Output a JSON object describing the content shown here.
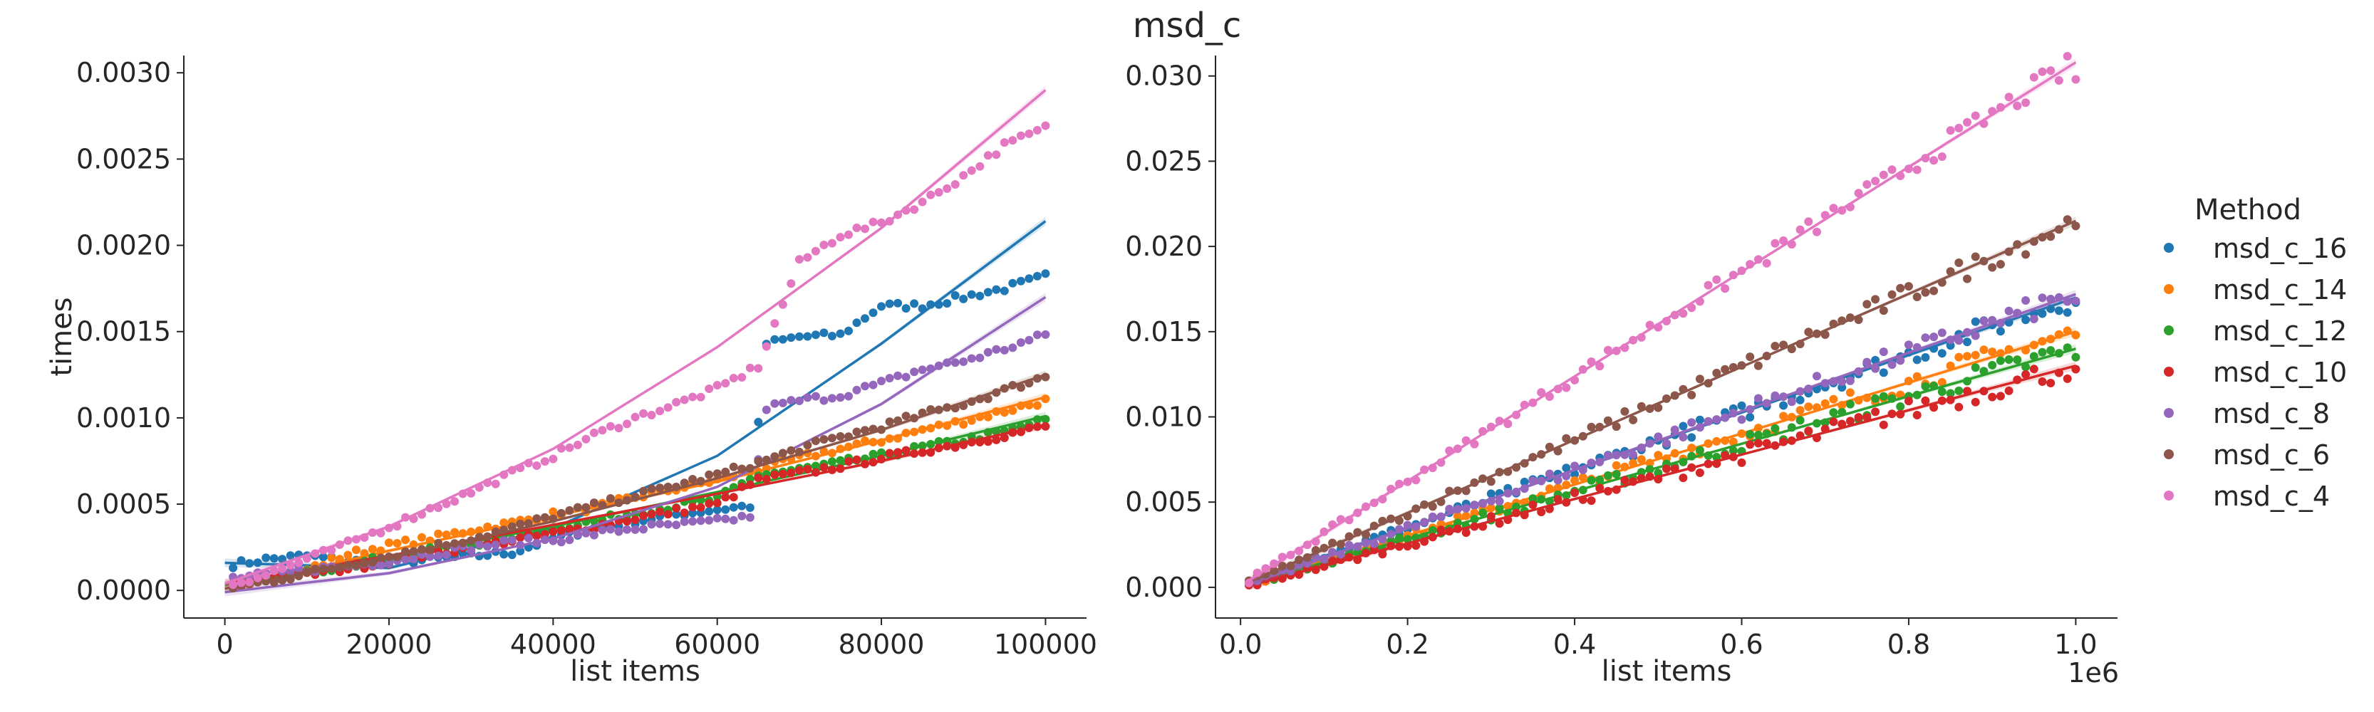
{
  "figure_title": "msd_c",
  "legend": {
    "title": "Method",
    "placement": "right"
  },
  "chart_data": [
    {
      "type": "scatter",
      "panel": "left",
      "xlabel": "list items",
      "ylabel": "times",
      "xlim": [
        -5000,
        105000
      ],
      "ylim": [
        -0.00016,
        0.0031
      ],
      "xticks": [
        0,
        20000,
        40000,
        60000,
        80000,
        100000
      ],
      "xtick_labels": [
        "0",
        "20000",
        "40000",
        "60000",
        "80000",
        "100000"
      ],
      "yticks": [
        0,
        0.0005,
        0.001,
        0.0015,
        0.002,
        0.0025,
        0.003
      ],
      "ytick_labels": [
        "0.0000",
        "0.0005",
        "0.0010",
        "0.0015",
        "0.0020",
        "0.0025",
        "0.0030"
      ],
      "x_offset_label": "",
      "grid": false,
      "trend_lines": "quadratic fit with confidence band",
      "x_samples": {
        "start": 1000,
        "stop": 100000,
        "count": 100
      },
      "series": [
        {
          "name": "msd_c_16",
          "color": "#1f77b4",
          "points": [
            [
              1000,
              0.00015
            ],
            [
              5000,
              0.00018
            ],
            [
              10000,
              0.0002
            ],
            [
              15000,
              0.00017
            ],
            [
              20000,
              0.00016
            ],
            [
              25000,
              0.00018
            ],
            [
              30000,
              0.0002
            ],
            [
              35000,
              0.00022
            ],
            [
              40000,
              0.0003
            ],
            [
              45000,
              0.00036
            ],
            [
              50000,
              0.0004
            ],
            [
              55000,
              0.00044
            ],
            [
              60000,
              0.00047
            ],
            [
              64000,
              0.00049
            ],
            [
              66000,
              0.00143
            ],
            [
              70000,
              0.00147
            ],
            [
              75000,
              0.00148
            ],
            [
              80000,
              0.00165
            ],
            [
              85000,
              0.00165
            ],
            [
              90000,
              0.0017
            ],
            [
              95000,
              0.00175
            ],
            [
              100000,
              0.00182
            ]
          ],
          "fit": [
            [
              0,
              0.00016
            ],
            [
              20000,
              0.00013
            ],
            [
              40000,
              0.00036
            ],
            [
              60000,
              0.00078
            ],
            [
              80000,
              0.00143
            ],
            [
              100000,
              0.00214
            ]
          ]
        },
        {
          "name": "msd_c_14",
          "color": "#ff7f0e",
          "points": [
            [
              1000,
              2e-05
            ],
            [
              5000,
              8e-05
            ],
            [
              10000,
              0.00012
            ],
            [
              15000,
              0.00021
            ],
            [
              20000,
              0.00026
            ],
            [
              25000,
              0.0003
            ],
            [
              30000,
              0.00035
            ],
            [
              35000,
              0.00039
            ],
            [
              40000,
              0.00044
            ],
            [
              45000,
              0.00048
            ],
            [
              50000,
              0.00054
            ],
            [
              55000,
              0.00059
            ],
            [
              60000,
              0.00064
            ],
            [
              65000,
              0.0007
            ],
            [
              70000,
              0.00077
            ],
            [
              75000,
              0.00082
            ],
            [
              80000,
              0.00087
            ],
            [
              85000,
              0.00093
            ],
            [
              90000,
              0.00098
            ],
            [
              95000,
              0.00104
            ],
            [
              100000,
              0.0011
            ]
          ],
          "fit": [
            [
              0,
              1e-05
            ],
            [
              20000,
              0.00023
            ],
            [
              40000,
              0.00043
            ],
            [
              60000,
              0.00063
            ],
            [
              80000,
              0.00087
            ],
            [
              100000,
              0.00112
            ]
          ]
        },
        {
          "name": "msd_c_12",
          "color": "#2ca02c",
          "points": [
            [
              1000,
              3e-05
            ],
            [
              5000,
              6e-05
            ],
            [
              10000,
              0.0001
            ],
            [
              15000,
              0.00015
            ],
            [
              20000,
              0.00019
            ],
            [
              25000,
              0.00023
            ],
            [
              30000,
              0.00027
            ],
            [
              35000,
              0.00031
            ],
            [
              40000,
              0.00036
            ],
            [
              45000,
              0.0004
            ],
            [
              50000,
              0.00045
            ],
            [
              55000,
              0.00049
            ],
            [
              60000,
              0.00053
            ],
            [
              65000,
              0.00067
            ],
            [
              70000,
              0.0007
            ],
            [
              75000,
              0.00074
            ],
            [
              80000,
              0.00078
            ],
            [
              85000,
              0.00083
            ],
            [
              90000,
              0.00087
            ],
            [
              95000,
              0.00092
            ],
            [
              100000,
              0.00099
            ]
          ],
          "fit": [
            [
              0,
              3e-05
            ],
            [
              20000,
              0.00019
            ],
            [
              40000,
              0.00037
            ],
            [
              60000,
              0.00057
            ],
            [
              80000,
              0.00078
            ],
            [
              100000,
              0.00101
            ]
          ]
        },
        {
          "name": "msd_c_10",
          "color": "#d62728",
          "points": [
            [
              1000,
              2e-05
            ],
            [
              5000,
              6e-05
            ],
            [
              10000,
              9e-05
            ],
            [
              15000,
              0.00013
            ],
            [
              20000,
              0.00017
            ],
            [
              25000,
              0.00021
            ],
            [
              30000,
              0.00025
            ],
            [
              35000,
              0.00029
            ],
            [
              40000,
              0.00033
            ],
            [
              45000,
              0.00037
            ],
            [
              50000,
              0.00042
            ],
            [
              55000,
              0.00046
            ],
            [
              60000,
              0.0005
            ],
            [
              65000,
              0.00064
            ],
            [
              70000,
              0.00068
            ],
            [
              75000,
              0.00072
            ],
            [
              80000,
              0.00077
            ],
            [
              85000,
              0.00081
            ],
            [
              90000,
              0.00085
            ],
            [
              95000,
              0.0009
            ],
            [
              100000,
              0.00095
            ]
          ],
          "fit": [
            [
              0,
              4e-05
            ],
            [
              20000,
              0.0002
            ],
            [
              40000,
              0.00038
            ],
            [
              60000,
              0.00056
            ],
            [
              80000,
              0.00075
            ],
            [
              100000,
              0.00096
            ]
          ]
        },
        {
          "name": "msd_c_8",
          "color": "#9467bd",
          "points": [
            [
              1000,
              7e-05
            ],
            [
              5000,
              9e-05
            ],
            [
              10000,
              0.00012
            ],
            [
              15000,
              0.00014
            ],
            [
              20000,
              0.00017
            ],
            [
              25000,
              0.00021
            ],
            [
              30000,
              0.00025
            ],
            [
              35000,
              0.00028
            ],
            [
              40000,
              0.00029
            ],
            [
              45000,
              0.00033
            ],
            [
              50000,
              0.00036
            ],
            [
              55000,
              0.00038
            ],
            [
              60000,
              0.0004
            ],
            [
              64000,
              0.00043
            ],
            [
              66000,
              0.00106
            ],
            [
              70000,
              0.0011
            ],
            [
              75000,
              0.00113
            ],
            [
              80000,
              0.0012
            ],
            [
              85000,
              0.00128
            ],
            [
              90000,
              0.00133
            ],
            [
              95000,
              0.0014
            ],
            [
              100000,
              0.00148
            ]
          ],
          "fit": [
            [
              0,
              -1e-05
            ],
            [
              20000,
              0.0001
            ],
            [
              40000,
              0.0003
            ],
            [
              60000,
              0.0006
            ],
            [
              80000,
              0.00108
            ],
            [
              100000,
              0.0017
            ]
          ]
        },
        {
          "name": "msd_c_6",
          "color": "#8c564b",
          "points": [
            [
              1000,
              2e-05
            ],
            [
              5000,
              5e-05
            ],
            [
              10000,
              0.0001
            ],
            [
              15000,
              0.00015
            ],
            [
              20000,
              0.0002
            ],
            [
              25000,
              0.00025
            ],
            [
              30000,
              0.0003
            ],
            [
              35000,
              0.00036
            ],
            [
              40000,
              0.00043
            ],
            [
              45000,
              0.00049
            ],
            [
              50000,
              0.00055
            ],
            [
              55000,
              0.00061
            ],
            [
              60000,
              0.00067
            ],
            [
              65000,
              0.00074
            ],
            [
              70000,
              0.00082
            ],
            [
              75000,
              0.00089
            ],
            [
              80000,
              0.00095
            ],
            [
              85000,
              0.00102
            ],
            [
              90000,
              0.00108
            ],
            [
              95000,
              0.00116
            ],
            [
              100000,
              0.00124
            ]
          ],
          "fit": [
            [
              0,
              1e-05
            ],
            [
              20000,
              0.00019
            ],
            [
              40000,
              0.0004
            ],
            [
              60000,
              0.00065
            ],
            [
              80000,
              0.00093
            ],
            [
              100000,
              0.00125
            ]
          ]
        },
        {
          "name": "msd_c_4",
          "color": "#e377c2",
          "points": [
            [
              1000,
              4e-05
            ],
            [
              5000,
              9e-05
            ],
            [
              10000,
              0.00018
            ],
            [
              15000,
              0.00027
            ],
            [
              20000,
              0.00037
            ],
            [
              25000,
              0.00047
            ],
            [
              30000,
              0.00057
            ],
            [
              35000,
              0.00068
            ],
            [
              40000,
              0.00078
            ],
            [
              45000,
              0.0009
            ],
            [
              50000,
              0.001
            ],
            [
              55000,
              0.00108
            ],
            [
              60000,
              0.00117
            ],
            [
              65000,
              0.0013
            ],
            [
              70000,
              0.0019
            ],
            [
              75000,
              0.00206
            ],
            [
              80000,
              0.00213
            ],
            [
              85000,
              0.00225
            ],
            [
              90000,
              0.0024
            ],
            [
              95000,
              0.00258
            ],
            [
              100000,
              0.00268
            ]
          ],
          "fit": [
            [
              0,
              4e-05
            ],
            [
              20000,
              0.00037
            ],
            [
              40000,
              0.00082
            ],
            [
              60000,
              0.00141
            ],
            [
              80000,
              0.0021
            ],
            [
              100000,
              0.0029
            ]
          ]
        }
      ]
    },
    {
      "type": "scatter",
      "panel": "right",
      "xlabel": "list items",
      "ylabel": "",
      "xlim": [
        -0.03,
        1.05
      ],
      "ylim": [
        -0.0018,
        0.0312
      ],
      "xticks": [
        0,
        0.2,
        0.4,
        0.6,
        0.8,
        1.0
      ],
      "xtick_labels": [
        "0.0",
        "0.2",
        "0.4",
        "0.6",
        "0.8",
        "1.0"
      ],
      "yticks": [
        0,
        0.005,
        0.01,
        0.015,
        0.02,
        0.025,
        0.03
      ],
      "ytick_labels": [
        "0.000",
        "0.005",
        "0.010",
        "0.015",
        "0.020",
        "0.025",
        "0.030"
      ],
      "x_offset_label": "1e6",
      "grid": false,
      "trend_lines": "linear fit",
      "x_samples": {
        "start": 0.01,
        "stop": 1.0,
        "count": 100
      },
      "series": [
        {
          "name": "msd_c_16",
          "color": "#1f77b4",
          "fit": [
            [
              0.01,
              0.0003
            ],
            [
              1.0,
              0.017
            ]
          ],
          "end_point": [
            1.0,
            0.0167
          ]
        },
        {
          "name": "msd_c_14",
          "color": "#ff7f0e",
          "fit": [
            [
              0.01,
              0.0002
            ],
            [
              1.0,
              0.015
            ]
          ],
          "end_point": [
            1.0,
            0.0148
          ]
        },
        {
          "name": "msd_c_12",
          "color": "#2ca02c",
          "fit": [
            [
              0.01,
              0.0002
            ],
            [
              1.0,
              0.014
            ]
          ],
          "end_point": [
            1.0,
            0.0135
          ]
        },
        {
          "name": "msd_c_10",
          "color": "#d62728",
          "fit": [
            [
              0.01,
              0.0001
            ],
            [
              1.0,
              0.013
            ]
          ],
          "end_point": [
            1.0,
            0.0128
          ]
        },
        {
          "name": "msd_c_8",
          "color": "#9467bd",
          "fit": [
            [
              0.01,
              0.0002
            ],
            [
              1.0,
              0.0172
            ]
          ],
          "end_point": [
            1.0,
            0.0168
          ]
        },
        {
          "name": "msd_c_6",
          "color": "#8c564b",
          "fit": [
            [
              0.01,
              0.0003
            ],
            [
              1.0,
              0.0215
            ]
          ],
          "end_point": [
            1.0,
            0.0212
          ]
        },
        {
          "name": "msd_c_4",
          "color": "#e377c2",
          "fit": [
            [
              0.01,
              0.0004
            ],
            [
              1.0,
              0.0308
            ]
          ],
          "end_point": [
            1.0,
            0.0298
          ]
        }
      ]
    }
  ]
}
